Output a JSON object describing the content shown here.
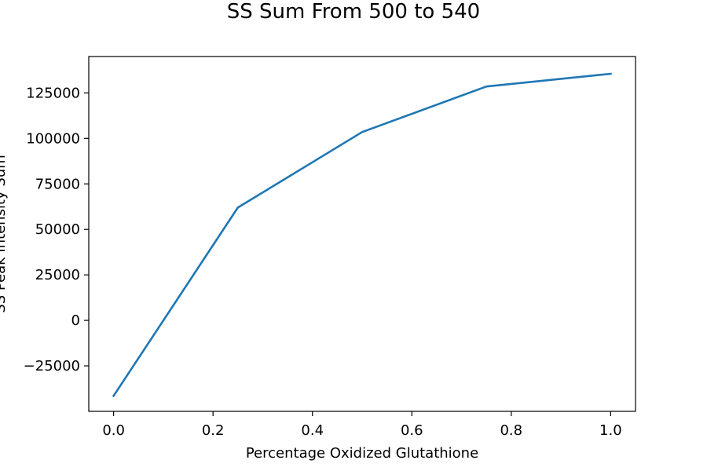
{
  "chart_data": {
    "type": "line",
    "title": "SS Sum From 500 to 540",
    "xlabel": "Percentage Oxidized Glutathione",
    "ylabel": "SS Peak Intensity Sum",
    "xlim": [
      -0.05,
      1.05
    ],
    "ylim": [
      -50000,
      145000
    ],
    "x_ticks": [
      0.0,
      0.2,
      0.4,
      0.6,
      0.8,
      1.0
    ],
    "x_tick_labels": [
      "0.0",
      "0.2",
      "0.4",
      "0.6",
      "0.8",
      "1.0"
    ],
    "y_ticks": [
      -25000,
      0,
      25000,
      50000,
      75000,
      100000,
      125000
    ],
    "y_tick_labels": [
      "−25000",
      "0",
      "25000",
      "50000",
      "75000",
      "100000",
      "125000"
    ],
    "grid": false,
    "series": [
      {
        "color": "#1f77b4",
        "x": [
          0.0,
          0.25,
          0.5,
          0.75,
          1.0
        ],
        "y": [
          -41500,
          62000,
          103500,
          128500,
          135500
        ]
      }
    ]
  }
}
